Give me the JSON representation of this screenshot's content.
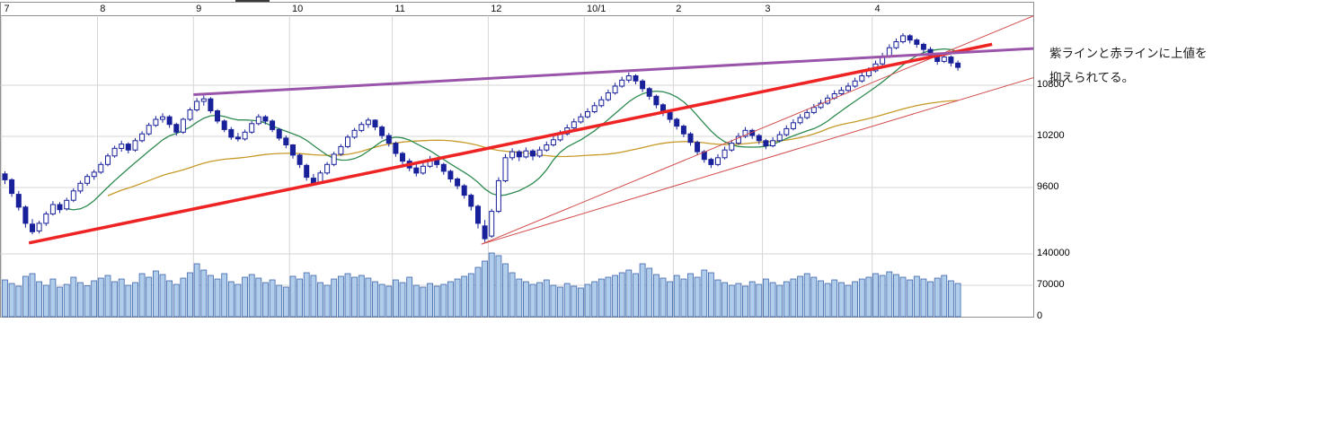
{
  "page": {
    "background": "#ffffff"
  },
  "annotation": {
    "line1": "紫ラインと赤ラインに上値を",
    "line2": "抑えられてる。"
  },
  "chart_data": {
    "type": "candlestick",
    "title": "",
    "legend": "none",
    "grid": "on",
    "x_axis": {
      "labels": [
        "7",
        "8",
        "9",
        "10",
        "11",
        "12",
        "10/1",
        "2",
        "3",
        "4"
      ],
      "boundary_idx": [
        0,
        14,
        28,
        42,
        57,
        71,
        85,
        98,
        111,
        127
      ]
    },
    "price_axis": {
      "side": "right",
      "visible_range": [
        8900,
        11760
      ],
      "ticks": [
        {
          "label": "10800",
          "value": 10800
        },
        {
          "label": "10200",
          "value": 10200
        },
        {
          "label": "9600",
          "value": 9600
        }
      ]
    },
    "volume_axis": {
      "side": "right",
      "ticks": [
        {
          "label": "140000",
          "value": 140000
        },
        {
          "label": "70000",
          "value": 70000
        },
        {
          "label": "0",
          "value": 0
        }
      ]
    },
    "candles": [
      [
        9760,
        9790,
        9640,
        9690
      ],
      [
        9690,
        9710,
        9490,
        9530
      ],
      [
        9520,
        9560,
        9330,
        9370
      ],
      [
        9370,
        9390,
        9130,
        9180
      ],
      [
        9170,
        9230,
        9050,
        9080
      ],
      [
        9090,
        9210,
        9060,
        9180
      ],
      [
        9180,
        9320,
        9150,
        9290
      ],
      [
        9290,
        9440,
        9270,
        9400
      ],
      [
        9400,
        9430,
        9300,
        9340
      ],
      [
        9350,
        9480,
        9330,
        9450
      ],
      [
        9450,
        9590,
        9430,
        9560
      ],
      [
        9560,
        9680,
        9530,
        9650
      ],
      [
        9650,
        9760,
        9620,
        9730
      ],
      [
        9730,
        9810,
        9690,
        9780
      ],
      [
        9780,
        9900,
        9760,
        9870
      ],
      [
        9870,
        10000,
        9850,
        9970
      ],
      [
        9970,
        10090,
        9950,
        10060
      ],
      [
        10060,
        10150,
        10020,
        10110
      ],
      [
        10110,
        10130,
        10000,
        10040
      ],
      [
        10040,
        10180,
        10020,
        10150
      ],
      [
        10150,
        10260,
        10130,
        10230
      ],
      [
        10230,
        10360,
        10210,
        10330
      ],
      [
        10330,
        10440,
        10310,
        10400
      ],
      [
        10400,
        10470,
        10360,
        10430
      ],
      [
        10430,
        10450,
        10300,
        10340
      ],
      [
        10340,
        10360,
        10210,
        10250
      ],
      [
        10250,
        10420,
        10230,
        10400
      ],
      [
        10400,
        10540,
        10380,
        10510
      ],
      [
        10510,
        10650,
        10490,
        10610
      ],
      [
        10610,
        10680,
        10560,
        10640
      ],
      [
        10640,
        10660,
        10470,
        10500
      ],
      [
        10500,
        10520,
        10350,
        10380
      ],
      [
        10380,
        10400,
        10250,
        10280
      ],
      [
        10280,
        10310,
        10160,
        10190
      ],
      [
        10190,
        10240,
        10140,
        10170
      ],
      [
        10170,
        10280,
        10150,
        10250
      ],
      [
        10250,
        10380,
        10230,
        10350
      ],
      [
        10350,
        10460,
        10330,
        10430
      ],
      [
        10430,
        10450,
        10340,
        10380
      ],
      [
        10380,
        10400,
        10250,
        10280
      ],
      [
        10280,
        10300,
        10150,
        10180
      ],
      [
        10180,
        10210,
        10060,
        10100
      ],
      [
        10100,
        10110,
        9940,
        9980
      ],
      [
        9980,
        10000,
        9830,
        9870
      ],
      [
        9860,
        9880,
        9680,
        9720
      ],
      [
        9710,
        9760,
        9620,
        9650
      ],
      [
        9660,
        9800,
        9640,
        9770
      ],
      [
        9770,
        9900,
        9750,
        9870
      ],
      [
        9870,
        10020,
        9850,
        9990
      ],
      [
        9990,
        10110,
        9970,
        10080
      ],
      [
        10080,
        10220,
        10060,
        10190
      ],
      [
        10190,
        10300,
        10170,
        10270
      ],
      [
        10270,
        10370,
        10250,
        10340
      ],
      [
        10340,
        10420,
        10300,
        10390
      ],
      [
        10390,
        10400,
        10270,
        10310
      ],
      [
        10310,
        10330,
        10170,
        10210
      ],
      [
        10210,
        10240,
        10080,
        10120
      ],
      [
        10120,
        10140,
        9960,
        10000
      ],
      [
        10000,
        10020,
        9870,
        9910
      ],
      [
        9910,
        9940,
        9790,
        9830
      ],
      [
        9830,
        9870,
        9730,
        9770
      ],
      [
        9770,
        9890,
        9750,
        9850
      ],
      [
        9850,
        9970,
        9830,
        9930
      ],
      [
        9930,
        9950,
        9830,
        9870
      ],
      [
        9870,
        9890,
        9750,
        9790
      ],
      [
        9790,
        9810,
        9660,
        9700
      ],
      [
        9700,
        9720,
        9580,
        9620
      ],
      [
        9620,
        9640,
        9470,
        9510
      ],
      [
        9510,
        9530,
        9330,
        9380
      ],
      [
        9380,
        9400,
        9120,
        9180
      ],
      [
        9150,
        9220,
        8960,
        9000
      ],
      [
        9030,
        9350,
        9010,
        9320
      ],
      [
        9320,
        9720,
        9300,
        9680
      ],
      [
        9680,
        9990,
        9660,
        9950
      ],
      [
        9950,
        10060,
        9920,
        10020
      ],
      [
        10020,
        10040,
        9910,
        9960
      ],
      [
        9960,
        10070,
        9940,
        10030
      ],
      [
        10030,
        10050,
        9920,
        9970
      ],
      [
        9970,
        10080,
        9950,
        10040
      ],
      [
        10040,
        10140,
        10020,
        10100
      ],
      [
        10100,
        10200,
        10080,
        10160
      ],
      [
        10160,
        10270,
        10140,
        10230
      ],
      [
        10230,
        10340,
        10210,
        10300
      ],
      [
        10300,
        10410,
        10280,
        10370
      ],
      [
        10370,
        10470,
        10350,
        10430
      ],
      [
        10430,
        10530,
        10410,
        10490
      ],
      [
        10490,
        10600,
        10470,
        10560
      ],
      [
        10560,
        10670,
        10540,
        10630
      ],
      [
        10630,
        10750,
        10610,
        10710
      ],
      [
        10710,
        10830,
        10690,
        10790
      ],
      [
        10790,
        10900,
        10770,
        10860
      ],
      [
        10860,
        10950,
        10830,
        10910
      ],
      [
        10910,
        10930,
        10810,
        10850
      ],
      [
        10850,
        10870,
        10720,
        10760
      ],
      [
        10760,
        10780,
        10630,
        10670
      ],
      [
        10670,
        10690,
        10530,
        10570
      ],
      [
        10570,
        10590,
        10440,
        10480
      ],
      [
        10480,
        10510,
        10360,
        10400
      ],
      [
        10400,
        10420,
        10280,
        10320
      ],
      [
        10320,
        10340,
        10190,
        10230
      ],
      [
        10230,
        10250,
        10090,
        10130
      ],
      [
        10130,
        10150,
        9980,
        10020
      ],
      [
        10020,
        10040,
        9890,
        9930
      ],
      [
        9930,
        9950,
        9830,
        9870
      ],
      [
        9870,
        9990,
        9850,
        9950
      ],
      [
        9950,
        10080,
        9930,
        10040
      ],
      [
        10040,
        10160,
        10020,
        10120
      ],
      [
        10120,
        10240,
        10100,
        10200
      ],
      [
        10200,
        10310,
        10180,
        10270
      ],
      [
        10270,
        10290,
        10170,
        10210
      ],
      [
        10210,
        10230,
        10110,
        10150
      ],
      [
        10150,
        10170,
        10050,
        10090
      ],
      [
        10090,
        10190,
        10070,
        10150
      ],
      [
        10150,
        10260,
        10130,
        10220
      ],
      [
        10220,
        10330,
        10200,
        10290
      ],
      [
        10290,
        10400,
        10270,
        10360
      ],
      [
        10360,
        10460,
        10340,
        10420
      ],
      [
        10420,
        10520,
        10400,
        10480
      ],
      [
        10480,
        10580,
        10460,
        10540
      ],
      [
        10540,
        10630,
        10520,
        10590
      ],
      [
        10590,
        10690,
        10570,
        10650
      ],
      [
        10650,
        10740,
        10630,
        10700
      ],
      [
        10700,
        10780,
        10680,
        10740
      ],
      [
        10740,
        10830,
        10720,
        10790
      ],
      [
        10790,
        10890,
        10770,
        10850
      ],
      [
        10850,
        10950,
        10830,
        10910
      ],
      [
        10910,
        11010,
        10890,
        10970
      ],
      [
        10970,
        11090,
        10950,
        11050
      ],
      [
        11050,
        11180,
        11030,
        11140
      ],
      [
        11140,
        11280,
        11120,
        11240
      ],
      [
        11240,
        11350,
        11220,
        11310
      ],
      [
        11310,
        11410,
        11290,
        11380
      ],
      [
        11380,
        11400,
        11290,
        11330
      ],
      [
        11330,
        11350,
        11240,
        11280
      ],
      [
        11280,
        11300,
        11180,
        11220
      ],
      [
        11220,
        11250,
        11110,
        11150
      ],
      [
        11150,
        11170,
        11040,
        11080
      ],
      [
        11080,
        11180,
        11060,
        11130
      ],
      [
        11130,
        11150,
        11020,
        11060
      ],
      [
        11060,
        11090,
        10970,
        11010
      ]
    ],
    "volumes": [
      82000,
      74000,
      68000,
      90000,
      96000,
      78000,
      70000,
      84000,
      66000,
      72000,
      88000,
      76000,
      69000,
      80000,
      86000,
      92000,
      78000,
      84000,
      70000,
      76000,
      96000,
      88000,
      102000,
      94000,
      80000,
      72000,
      86000,
      98000,
      118000,
      104000,
      92000,
      84000,
      96000,
      78000,
      72000,
      88000,
      94000,
      86000,
      76000,
      82000,
      70000,
      66000,
      90000,
      84000,
      98000,
      92000,
      76000,
      70000,
      84000,
      90000,
      96000,
      88000,
      92000,
      86000,
      78000,
      72000,
      68000,
      82000,
      76000,
      88000,
      70000,
      66000,
      74000,
      68000,
      72000,
      78000,
      84000,
      90000,
      96000,
      110000,
      124000,
      142000,
      136000,
      118000,
      98000,
      84000,
      78000,
      72000,
      76000,
      82000,
      70000,
      66000,
      74000,
      68000,
      64000,
      72000,
      78000,
      84000,
      88000,
      92000,
      98000,
      104000,
      96000,
      118000,
      108000,
      94000,
      86000,
      78000,
      92000,
      84000,
      96000,
      88000,
      104000,
      98000,
      82000,
      76000,
      70000,
      74000,
      68000,
      78000,
      72000,
      84000,
      76000,
      70000,
      78000,
      84000,
      90000,
      96000,
      88000,
      80000,
      74000,
      82000,
      76000,
      70000,
      78000,
      84000,
      88000,
      96000,
      92000,
      100000,
      94000,
      88000,
      82000,
      90000,
      84000,
      78000,
      86000,
      92000,
      80000,
      74000
    ],
    "moving_averages": [
      {
        "name": "short-ma",
        "window": 10,
        "color": "#2e8b50"
      },
      {
        "name": "long-ma",
        "window": 50,
        "color": "#c79a28",
        "start_idx": 15
      }
    ],
    "trendlines": [
      {
        "name": "red-fan-line-1",
        "color": "#d24a4a",
        "width": 1,
        "from": {
          "idx": 69.5,
          "price": 8935
        },
        "to": {
          "idx": 150.5,
          "price": 11630
        }
      },
      {
        "name": "red-fan-line-2",
        "color": "#d24a4a",
        "width": 1,
        "from": {
          "idx": 69.5,
          "price": 8935
        },
        "to": {
          "idx": 150.5,
          "price": 10900
        }
      },
      {
        "name": "red-support-line",
        "color": "#ee2424",
        "width": 3.5,
        "from": {
          "idx": 3.5,
          "price": 8950
        },
        "to": {
          "idx": 144,
          "price": 11280
        }
      },
      {
        "name": "purple-resistance-line",
        "color": "#9a55aa",
        "width": 3,
        "from": {
          "idx": 27.5,
          "price": 10690
        },
        "to": {
          "idx": 150,
          "price": 11230
        }
      }
    ],
    "colors": {
      "up_fill": "#ffffff",
      "candle": "#18209a",
      "volume_fill": "#b0cdeb",
      "volume_stroke": "#3c64aa",
      "grid": "#d6d6d6",
      "border": "#909090"
    }
  }
}
